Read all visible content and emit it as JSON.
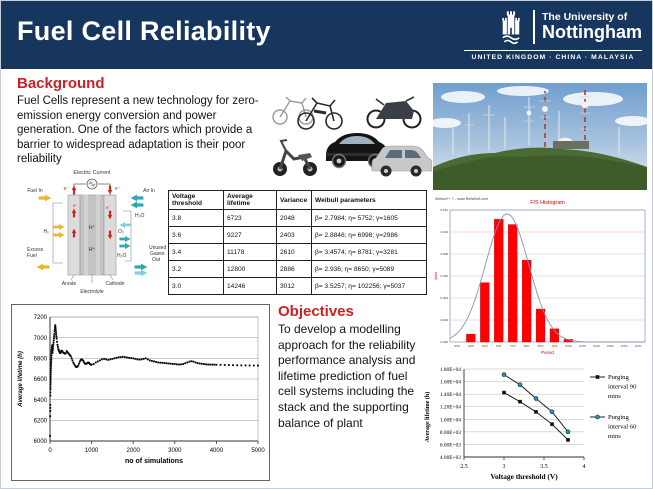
{
  "header": {
    "title": "Fuel Cell Reliability",
    "logo_line1": "The University of",
    "logo_line2": "Nottingham",
    "campuses": "UNITED KINGDOM · CHINA · MALAYSIA"
  },
  "background": {
    "heading": "Background",
    "text": "Fuel Cells represent a new technology for zero-emission energy conversion and power generation. One of the factors which provide a barrier to widespread adaptation is their poor reliability"
  },
  "objectives": {
    "heading": "Objectives",
    "text": "To develop a modelling approach for the reliability performance analysis and lifetime prediction of fuel cell systems including the stack and the supporting balance of plant"
  },
  "diagram": {
    "electric_current": "Electric Current",
    "fuel_in": "Fuel In",
    "air_in": "Air In",
    "h2": "H₂",
    "o2": "O₂",
    "water": "H₂O",
    "electron": "e⁻",
    "proton": "H⁺",
    "excess_l1": "Excess",
    "excess_l2": "Fuel",
    "unused_l1": "Unused",
    "unused_l2": "Gases",
    "unused_l3": "Out",
    "anode": "Anode",
    "electrolyte": "Electrolyte",
    "cathode": "Cathode"
  },
  "table": {
    "headers": [
      "Voltage threshold",
      "Average lifetime",
      "Variance",
      "Weibull parameters"
    ],
    "rows": [
      [
        "3.8",
        "6723",
        "2048",
        "β= 2.7984;   η= 5752;   γ=1605"
      ],
      [
        "3.6",
        "9227",
        "2403",
        "β= 2.8846;   η= 6998;   γ=2986"
      ],
      [
        "3.4",
        "11178",
        "2610",
        "β= 3.4574;   η= 8781;   γ=3281"
      ],
      [
        "3.2",
        "12800",
        "2886",
        "β= 2.936;    η= 8650;   γ=5089"
      ],
      [
        "3.0",
        "14246",
        "3012",
        "β= 3.5257;   η= 102256; γ=5037"
      ]
    ]
  },
  "chart_data": [
    {
      "type": "bar",
      "name": "weibull_histogram",
      "title": "F/S Histogram",
      "watermark": "Weibull++ 7 - www.ReliaSoft.com",
      "xlabel": "Period",
      "ylabel": "Value",
      "bins_approx": [
        "4000",
        "4800",
        "5600",
        "6400",
        "7200",
        "8000",
        "8800",
        "9600",
        "10400",
        "11200",
        "12000",
        "12800",
        "13600",
        "14400"
      ],
      "values_relative": [
        0,
        0.06,
        0.45,
        0.93,
        0.89,
        0.62,
        0.25,
        0.1,
        0.02,
        0,
        0,
        0,
        0,
        0
      ],
      "ytick_labels_approx": [
        "0.012",
        "0.010",
        "0.008",
        "0.006",
        "0.004",
        "0.002",
        "0.000"
      ],
      "curve": {
        "center_bin": 4.1,
        "sigma_bins": 1.55,
        "peak_relative": 0.97
      },
      "bar_color": "#FF0000",
      "curve_color": "#8096BE",
      "grid_color": "#F2AFAF",
      "frame_color": "#8BA3C7",
      "legend_position": "none",
      "grid": true
    },
    {
      "type": "scatter",
      "name": "convergence_plot",
      "xlabel": "no of simulations",
      "ylabel": "Average lifetime (h)",
      "xlim": [
        0,
        5000
      ],
      "ylim": [
        6000,
        7200
      ],
      "xticks": [
        0,
        1000,
        2000,
        3000,
        4000,
        5000
      ],
      "yticks": [
        6000,
        6200,
        6400,
        6600,
        6800,
        7000,
        7200
      ],
      "grid": true,
      "marker_color": "#000000",
      "points": [
        [
          2,
          6050
        ],
        [
          4,
          6240
        ],
        [
          5,
          6290
        ],
        [
          6,
          6320
        ],
        [
          7,
          6350
        ],
        [
          8,
          6440
        ],
        [
          9,
          6470
        ],
        [
          10,
          6500
        ],
        [
          11,
          6520
        ],
        [
          12,
          6545
        ],
        [
          13,
          6565
        ],
        [
          14,
          6585
        ],
        [
          15,
          6605
        ],
        [
          16,
          6625
        ],
        [
          17,
          6645
        ],
        [
          18,
          6665
        ],
        [
          20,
          6685
        ],
        [
          22,
          6705
        ],
        [
          24,
          6725
        ],
        [
          26,
          6745
        ],
        [
          28,
          6765
        ],
        [
          30,
          6785
        ],
        [
          32,
          6805
        ],
        [
          34,
          6825
        ],
        [
          36,
          6845
        ],
        [
          38,
          6865
        ],
        [
          40,
          6885
        ],
        [
          45,
          6905
        ],
        [
          50,
          6925
        ],
        [
          55,
          6885
        ],
        [
          60,
          6855
        ],
        [
          65,
          6875
        ],
        [
          70,
          6895
        ],
        [
          75,
          6915
        ],
        [
          80,
          6935
        ],
        [
          85,
          6955
        ],
        [
          90,
          6975
        ],
        [
          95,
          6995
        ],
        [
          100,
          7015
        ],
        [
          105,
          7035
        ],
        [
          110,
          7060
        ],
        [
          115,
          7080
        ],
        [
          120,
          7100
        ],
        [
          125,
          7120
        ],
        [
          130,
          7110
        ],
        [
          135,
          7090
        ],
        [
          140,
          7070
        ],
        [
          145,
          7050
        ],
        [
          150,
          7030
        ],
        [
          155,
          7010
        ],
        [
          160,
          6990
        ],
        [
          170,
          6960
        ],
        [
          180,
          6930
        ],
        [
          190,
          6910
        ],
        [
          200,
          6890
        ],
        [
          210,
          6880
        ],
        [
          220,
          6870
        ],
        [
          230,
          6860
        ],
        [
          240,
          6855
        ],
        [
          250,
          6850
        ],
        [
          260,
          6860
        ],
        [
          270,
          6870
        ],
        [
          280,
          6875
        ],
        [
          290,
          6870
        ],
        [
          300,
          6865
        ],
        [
          320,
          6855
        ],
        [
          340,
          6850
        ],
        [
          360,
          6845
        ],
        [
          380,
          6850
        ],
        [
          400,
          6870
        ],
        [
          420,
          6860
        ],
        [
          440,
          6850
        ],
        [
          460,
          6840
        ],
        [
          480,
          6830
        ],
        [
          500,
          6820
        ],
        [
          520,
          6800
        ],
        [
          540,
          6780
        ],
        [
          560,
          6760
        ],
        [
          580,
          6745
        ],
        [
          600,
          6730
        ],
        [
          620,
          6720
        ],
        [
          640,
          6715
        ],
        [
          660,
          6720
        ],
        [
          680,
          6730
        ],
        [
          700,
          6750
        ],
        [
          720,
          6770
        ],
        [
          740,
          6785
        ],
        [
          760,
          6790
        ],
        [
          780,
          6785
        ],
        [
          800,
          6775
        ],
        [
          820,
          6760
        ],
        [
          840,
          6750
        ],
        [
          860,
          6745
        ],
        [
          880,
          6750
        ],
        [
          900,
          6755
        ],
        [
          920,
          6760
        ],
        [
          940,
          6755
        ],
        [
          960,
          6745
        ],
        [
          980,
          6740
        ],
        [
          1000,
          6738
        ],
        [
          1050,
          6745
        ],
        [
          1100,
          6760
        ],
        [
          1150,
          6770
        ],
        [
          1200,
          6780
        ],
        [
          1250,
          6790
        ],
        [
          1300,
          6795
        ],
        [
          1350,
          6790
        ],
        [
          1400,
          6785
        ],
        [
          1450,
          6790
        ],
        [
          1500,
          6795
        ],
        [
          1550,
          6800
        ],
        [
          1600,
          6805
        ],
        [
          1650,
          6810
        ],
        [
          1700,
          6812
        ],
        [
          1750,
          6815
        ],
        [
          1800,
          6812
        ],
        [
          1850,
          6808
        ],
        [
          1900,
          6805
        ],
        [
          1950,
          6802
        ],
        [
          2000,
          6800
        ],
        [
          2050,
          6795
        ],
        [
          2100,
          6790
        ],
        [
          2150,
          6788
        ],
        [
          2200,
          6790
        ],
        [
          2250,
          6795
        ],
        [
          2300,
          6800
        ],
        [
          2350,
          6790
        ],
        [
          2400,
          6780
        ],
        [
          2450,
          6775
        ],
        [
          2500,
          6770
        ],
        [
          2550,
          6765
        ],
        [
          2600,
          6760
        ],
        [
          2650,
          6758
        ],
        [
          2700,
          6757
        ],
        [
          2750,
          6755
        ],
        [
          2800,
          6752
        ],
        [
          2850,
          6750
        ],
        [
          2900,
          6748
        ],
        [
          2950,
          6746
        ],
        [
          3000,
          6745
        ],
        [
          3050,
          6742
        ],
        [
          3100,
          6740
        ],
        [
          3150,
          6742
        ],
        [
          3200,
          6745
        ],
        [
          3250,
          6752
        ],
        [
          3300,
          6760
        ],
        [
          3350,
          6768
        ],
        [
          3400,
          6772
        ],
        [
          3450,
          6768
        ],
        [
          3500,
          6760
        ],
        [
          3550,
          6754
        ],
        [
          3600,
          6750
        ],
        [
          3650,
          6747
        ],
        [
          3700,
          6745
        ],
        [
          3750,
          6742
        ],
        [
          3800,
          6740
        ],
        [
          3850,
          6740
        ],
        [
          3900,
          6739
        ],
        [
          3950,
          6739
        ],
        [
          4000,
          6738
        ],
        [
          4100,
          6737
        ],
        [
          4200,
          6736
        ],
        [
          4300,
          6735
        ],
        [
          4400,
          6734
        ],
        [
          4500,
          6733
        ],
        [
          4600,
          6732
        ],
        [
          4700,
          6732
        ],
        [
          4800,
          6731
        ],
        [
          4900,
          6730
        ],
        [
          5000,
          6730
        ]
      ]
    },
    {
      "type": "line",
      "name": "purging_interval_comparison",
      "xlabel": "Voltage threshold (V)",
      "ylabel": "Average lifetime (h)",
      "xlim": [
        2.5,
        4
      ],
      "ylim": [
        4000,
        18000
      ],
      "xticks": [
        2.5,
        3,
        3.5,
        4
      ],
      "yticks": [
        18000,
        16000,
        14000,
        12000,
        10000,
        8000,
        6000,
        4000
      ],
      "ytick_labels": [
        "1.80E+04",
        "1.60E+04",
        "1.40E+04",
        "1.20E+04",
        "1.00E+04",
        "8.00E+03",
        "6.00E+03",
        "4.00E+03"
      ],
      "grid": true,
      "legend_position": "right",
      "series": [
        {
          "name": "Purging interval 90 mins",
          "legend_lines": [
            "Purging",
            "interval 90",
            "mins"
          ],
          "marker": "square",
          "marker_color": "#111111",
          "line_color": "#222222",
          "x": [
            3.0,
            3.2,
            3.4,
            3.6,
            3.8
          ],
          "y": [
            14246,
            12800,
            11178,
            9227,
            6723
          ]
        },
        {
          "name": "Purging interval 60 mins",
          "legend_lines": [
            "Purging",
            "interval 60",
            "mins"
          ],
          "marker": "circle",
          "marker_color": "#2196A8",
          "line_color": "#222222",
          "x": [
            3.0,
            3.2,
            3.4,
            3.6,
            3.8
          ],
          "y": [
            17100,
            15500,
            13300,
            11200,
            8000
          ]
        }
      ]
    }
  ]
}
